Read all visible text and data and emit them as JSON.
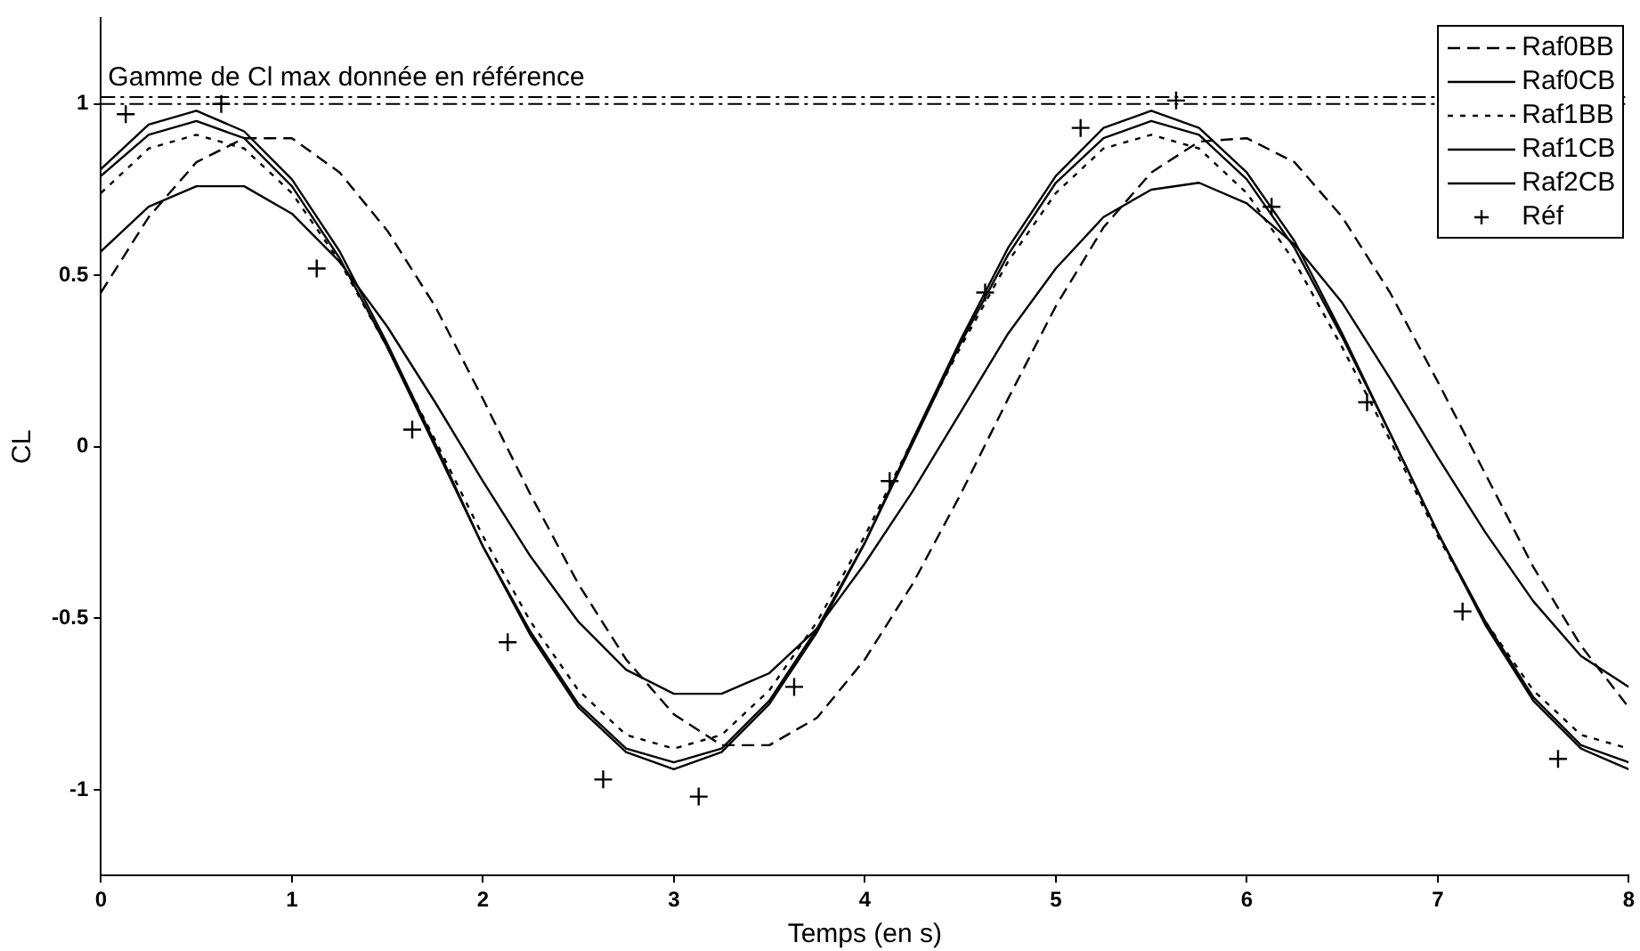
{
  "chart_data": {
    "type": "line",
    "xlabel": "Temps (en s)",
    "ylabel": "CL",
    "xlim": [
      0,
      8
    ],
    "xticks": [
      0,
      1,
      2,
      3,
      4,
      5,
      6,
      7,
      8
    ],
    "ylim": [
      -1.25,
      1.25
    ],
    "yticks": [
      -1,
      -0.5,
      0,
      0.5,
      1
    ],
    "grid": false,
    "legend": "top right",
    "marker": "none",
    "x": [
      0,
      0.25,
      0.5,
      0.75,
      1,
      1.25,
      1.5,
      1.75,
      2,
      2.25,
      2.5,
      2.75,
      3,
      3.25,
      3.5,
      3.75,
      4,
      4.25,
      4.5,
      4.75,
      5,
      5.25,
      5.5,
      5.75,
      6,
      6.25,
      6.5,
      6.75,
      7,
      7.25,
      7.5,
      7.75,
      8
    ],
    "series": [
      {
        "name": "Raf0BB",
        "color": "#000000",
        "line_style": "dashed",
        "values": [
          0.45,
          0.67,
          0.83,
          0.9,
          0.9,
          0.8,
          0.63,
          0.41,
          0.14,
          -0.14,
          -0.4,
          -0.62,
          -0.78,
          -0.87,
          -0.87,
          -0.79,
          -0.62,
          -0.4,
          -0.14,
          0.14,
          0.41,
          0.64,
          0.8,
          0.89,
          0.9,
          0.83,
          0.67,
          0.45,
          0.19,
          -0.08,
          -0.35,
          -0.58,
          -0.76
        ]
      },
      {
        "name": "Raf0CB",
        "color": "#000000",
        "line_style": "solid",
        "values": [
          0.81,
          0.94,
          0.98,
          0.92,
          0.78,
          0.57,
          0.3,
          0.01,
          -0.29,
          -0.55,
          -0.76,
          -0.89,
          -0.94,
          -0.89,
          -0.75,
          -0.54,
          -0.28,
          0.02,
          0.31,
          0.58,
          0.79,
          0.93,
          0.98,
          0.93,
          0.8,
          0.6,
          0.33,
          0.04,
          -0.25,
          -0.52,
          -0.74,
          -0.88,
          -0.94
        ]
      },
      {
        "name": "Raf1BB",
        "color": "#000000",
        "line_style": "dotted",
        "values": [
          0.74,
          0.87,
          0.91,
          0.87,
          0.74,
          0.54,
          0.29,
          0.02,
          -0.26,
          -0.51,
          -0.71,
          -0.84,
          -0.88,
          -0.84,
          -0.71,
          -0.51,
          -0.26,
          0.02,
          0.29,
          0.54,
          0.74,
          0.87,
          0.91,
          0.87,
          0.74,
          0.54,
          0.29,
          0.02,
          -0.26,
          -0.51,
          -0.71,
          -0.84,
          -0.88
        ]
      },
      {
        "name": "Raf1CB",
        "color": "#000000",
        "line_style": "solid",
        "values": [
          0.79,
          0.91,
          0.95,
          0.9,
          0.76,
          0.55,
          0.29,
          0,
          -0.29,
          -0.54,
          -0.75,
          -0.88,
          -0.92,
          -0.88,
          -0.74,
          -0.53,
          -0.28,
          0.01,
          0.3,
          0.56,
          0.77,
          0.9,
          0.95,
          0.91,
          0.78,
          0.58,
          0.32,
          0.04,
          -0.25,
          -0.51,
          -0.73,
          -0.87,
          -0.92
        ]
      },
      {
        "name": "Raf2CB",
        "color": "#000000",
        "line_style": "solid",
        "values": [
          0.57,
          0.7,
          0.76,
          0.76,
          0.68,
          0.54,
          0.35,
          0.13,
          -0.1,
          -0.32,
          -0.51,
          -0.65,
          -0.72,
          -0.72,
          -0.66,
          -0.53,
          -0.34,
          -0.13,
          0.1,
          0.33,
          0.52,
          0.67,
          0.75,
          0.77,
          0.71,
          0.59,
          0.42,
          0.2,
          -0.03,
          -0.25,
          -0.45,
          -0.61,
          -0.7
        ]
      },
      {
        "name": "Réf",
        "type": "scatter",
        "marker": "cross",
        "color": "#000000",
        "x": [
          0.13,
          0.63,
          1.13,
          1.63,
          2.13,
          2.63,
          3.13,
          3.63,
          4.13,
          4.63,
          5.13,
          5.63,
          6.13,
          6.63,
          7.13,
          7.63
        ],
        "values": [
          0.97,
          1.0,
          0.52,
          0.05,
          -0.57,
          -0.97,
          -1.02,
          -0.7,
          -0.1,
          0.45,
          0.93,
          1.01,
          0.7,
          0.13,
          -0.48,
          -0.91
        ]
      }
    ],
    "ref_lines": [
      {
        "axis": "y",
        "value": 1.02,
        "label": "Gamme de Cl max donnée en référence",
        "line_style": "dashdot",
        "color": "#000000"
      },
      {
        "axis": "y",
        "value": 1.0,
        "line_style": "dashdot",
        "color": "#000000"
      }
    ]
  }
}
